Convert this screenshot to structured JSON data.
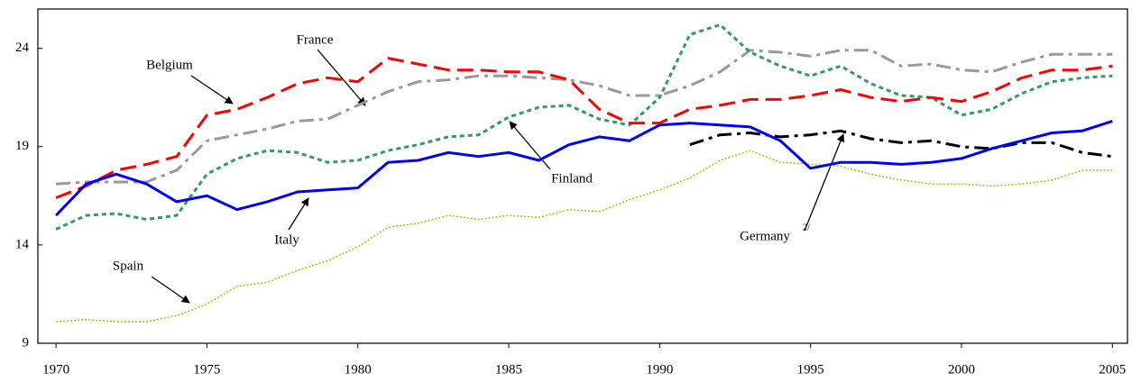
{
  "chart_data": {
    "type": "line",
    "x": [
      1970,
      1971,
      1972,
      1973,
      1974,
      1975,
      1976,
      1977,
      1978,
      1979,
      1980,
      1981,
      1982,
      1983,
      1984,
      1985,
      1986,
      1987,
      1988,
      1989,
      1990,
      1991,
      1992,
      1993,
      1994,
      1995,
      1996,
      1997,
      1998,
      1999,
      2000,
      2001,
      2002,
      2003,
      2004,
      2005
    ],
    "xlim": [
      1969.4,
      2005.5
    ],
    "xticks": [
      1970,
      1975,
      1980,
      1985,
      1990,
      1995,
      2000,
      2005
    ],
    "ylim": [
      9,
      26
    ],
    "yticks": [
      9,
      14,
      19,
      24
    ],
    "grid": false,
    "series": [
      {
        "name": "Belgium",
        "color": "#ff0000",
        "line_style": "dashed",
        "values": [
          16.4,
          17.0,
          17.8,
          18.1,
          18.5,
          20.6,
          20.9,
          21.5,
          22.2,
          22.5,
          22.3,
          23.5,
          23.2,
          22.9,
          22.9,
          22.8,
          22.8,
          22.4,
          20.9,
          20.2,
          20.2,
          20.9,
          21.1,
          21.4,
          21.4,
          21.6,
          21.9,
          21.5,
          21.3,
          21.5,
          21.3,
          21.8,
          22.5,
          22.9,
          22.9,
          23.1
        ]
      },
      {
        "name": "France",
        "color": "#999999",
        "line_style": "dashdot",
        "values": [
          17.1,
          17.2,
          17.2,
          17.2,
          17.8,
          19.3,
          19.6,
          19.9,
          20.3,
          20.4,
          21.1,
          21.8,
          22.3,
          22.4,
          22.6,
          22.6,
          22.5,
          22.4,
          22.1,
          21.6,
          21.6,
          22.1,
          22.8,
          23.9,
          23.8,
          23.6,
          23.9,
          23.9,
          23.1,
          23.2,
          22.9,
          22.8,
          23.3,
          23.7,
          23.7,
          23.7
        ]
      },
      {
        "name": "Finland",
        "color": "#339966",
        "line_style": "dotted",
        "values": [
          14.8,
          15.5,
          15.6,
          15.3,
          15.5,
          17.6,
          18.4,
          18.8,
          18.7,
          18.2,
          18.3,
          18.8,
          19.1,
          19.5,
          19.6,
          20.5,
          21.0,
          21.1,
          20.4,
          20.1,
          21.5,
          24.7,
          25.2,
          23.8,
          23.1,
          22.6,
          23.1,
          22.2,
          21.6,
          21.5,
          20.6,
          20.9,
          21.7,
          22.3,
          22.5,
          22.6
        ]
      },
      {
        "name": "Italy",
        "color": "#0000ff",
        "line_style": "solid",
        "values": [
          15.5,
          17.1,
          17.6,
          17.1,
          16.2,
          16.5,
          15.8,
          16.2,
          16.7,
          16.8,
          16.9,
          18.2,
          18.3,
          18.7,
          18.5,
          18.7,
          18.3,
          19.1,
          19.5,
          19.3,
          20.1,
          20.2,
          20.1,
          20.0,
          19.3,
          17.9,
          18.2,
          18.2,
          18.1,
          18.2,
          18.4,
          18.9,
          19.3,
          19.7,
          19.8,
          20.3
        ]
      },
      {
        "name": "Spain",
        "color": "#99cc00",
        "line_style": "fine-dotted",
        "values": [
          10.1,
          10.2,
          10.1,
          10.1,
          10.4,
          11.0,
          11.9,
          12.1,
          12.7,
          13.2,
          13.9,
          14.9,
          15.1,
          15.5,
          15.3,
          15.5,
          15.4,
          15.8,
          15.7,
          16.3,
          16.8,
          17.4,
          18.3,
          18.8,
          18.2,
          18.1,
          18.0,
          17.6,
          17.3,
          17.1,
          17.1,
          17.0,
          17.1,
          17.3,
          17.8,
          17.8
        ]
      },
      {
        "name": "Germany",
        "note": "2/",
        "color": "#000000",
        "line_style": "dashdot",
        "values": [
          null,
          null,
          null,
          null,
          null,
          null,
          null,
          null,
          null,
          null,
          null,
          null,
          null,
          null,
          null,
          null,
          null,
          null,
          null,
          null,
          null,
          19.1,
          19.6,
          19.7,
          19.5,
          19.6,
          19.8,
          19.4,
          19.2,
          19.3,
          19.0,
          18.9,
          19.2,
          19.2,
          18.7,
          18.5
        ]
      }
    ]
  }
}
